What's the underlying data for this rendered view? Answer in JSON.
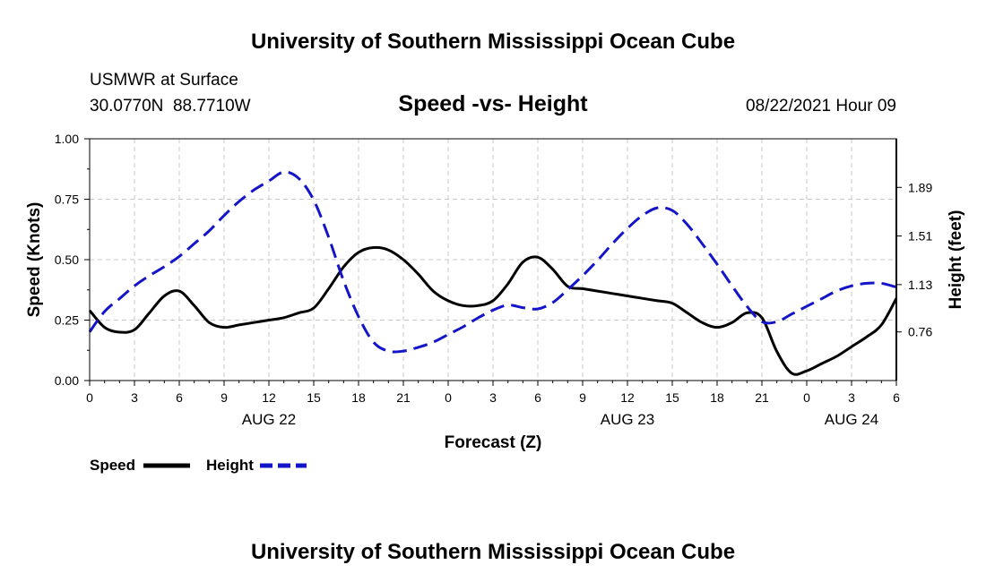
{
  "header": {
    "top_title": "University of Southern Mississippi Ocean Cube",
    "station": "USMWR at Surface",
    "coords": "30.0770N  88.7710W",
    "chart_title": "Speed -vs- Height",
    "date": "08/22/2021 Hour 09"
  },
  "footer": {
    "bottom_title": "University of Southern Mississippi Ocean Cube"
  },
  "colors": {
    "speed": "#000000",
    "height": "#1414c8",
    "grid": "#c8c8c8"
  },
  "chart_data": {
    "type": "line",
    "title": "Speed -vs- Height",
    "xlabel": "Forecast (Z)",
    "ylabel": "Speed (Knots)",
    "y2label": "Height (feet)",
    "xlim": [
      0,
      54
    ],
    "ylim": [
      0,
      1
    ],
    "y2lim": [
      0.38,
      2.27
    ],
    "x_tick_labels": [
      "0",
      "3",
      "6",
      "9",
      "12",
      "15",
      "18",
      "21",
      "0",
      "3",
      "6",
      "9",
      "12",
      "15",
      "18",
      "21",
      "0",
      "3",
      "6"
    ],
    "y_ticks": [
      {
        "value": 0,
        "label": "0.00"
      },
      {
        "value": 0.25,
        "label": "0.25"
      },
      {
        "value": 0.5,
        "label": "0.50"
      },
      {
        "value": 0.75,
        "label": "0.75"
      },
      {
        "value": 1,
        "label": "1.00"
      }
    ],
    "y2_ticks": [
      {
        "value": 0.76,
        "label": "0.76"
      },
      {
        "value": 1.13,
        "label": "1.13"
      },
      {
        "value": 1.51,
        "label": "1.51"
      },
      {
        "value": 1.89,
        "label": "1.89"
      }
    ],
    "date_labels": [
      {
        "x": 12,
        "label": "AUG 22"
      },
      {
        "x": 36,
        "label": "AUG 23"
      },
      {
        "x": 51,
        "label": "AUG 24"
      }
    ],
    "grid": true,
    "legend": [
      {
        "name": "Speed",
        "style": "solid"
      },
      {
        "name": "Height",
        "style": "dashed"
      }
    ],
    "series": [
      {
        "name": "Speed",
        "axis": "left",
        "x": [
          0,
          1,
          2,
          3,
          4,
          5,
          6,
          7,
          8,
          9,
          10,
          11,
          12,
          13,
          14,
          15,
          16,
          17,
          18,
          19,
          20,
          21,
          22,
          23,
          24,
          25,
          26,
          27,
          28,
          29,
          30,
          31,
          32,
          33,
          34,
          35,
          36,
          37,
          38,
          39,
          40,
          41,
          42,
          43,
          44,
          45,
          46,
          47,
          48,
          49,
          50,
          51,
          52,
          53,
          54
        ],
        "values": [
          0.29,
          0.22,
          0.2,
          0.21,
          0.28,
          0.35,
          0.37,
          0.31,
          0.24,
          0.22,
          0.23,
          0.24,
          0.25,
          0.26,
          0.28,
          0.3,
          0.38,
          0.47,
          0.53,
          0.55,
          0.54,
          0.5,
          0.44,
          0.37,
          0.33,
          0.31,
          0.31,
          0.33,
          0.4,
          0.49,
          0.51,
          0.46,
          0.39,
          0.38,
          0.37,
          0.36,
          0.35,
          0.34,
          0.33,
          0.32,
          0.28,
          0.24,
          0.22,
          0.24,
          0.28,
          0.26,
          0.12,
          0.03,
          0.04,
          0.07,
          0.1,
          0.14,
          0.18,
          0.23,
          0.34
        ]
      },
      {
        "name": "Height",
        "axis": "right",
        "x": [
          0,
          1,
          2,
          3,
          4,
          5,
          6,
          7,
          8,
          9,
          10,
          11,
          12,
          13,
          14,
          15,
          16,
          17,
          18,
          19,
          20,
          21,
          22,
          23,
          24,
          25,
          26,
          27,
          28,
          29,
          30,
          31,
          32,
          33,
          34,
          35,
          36,
          37,
          38,
          39,
          40,
          41,
          42,
          43,
          44,
          45,
          46,
          47,
          48,
          49,
          50,
          51,
          52,
          53,
          54
        ],
        "values": [
          0.76,
          0.92,
          1.02,
          1.12,
          1.2,
          1.27,
          1.35,
          1.45,
          1.55,
          1.67,
          1.78,
          1.87,
          1.94,
          2.01,
          1.96,
          1.79,
          1.5,
          1.16,
          0.88,
          0.68,
          0.61,
          0.61,
          0.64,
          0.68,
          0.74,
          0.8,
          0.87,
          0.93,
          0.97,
          0.95,
          0.94,
          0.99,
          1.09,
          1.2,
          1.32,
          1.45,
          1.57,
          1.67,
          1.73,
          1.71,
          1.6,
          1.45,
          1.29,
          1.12,
          0.96,
          0.84,
          0.84,
          0.9,
          0.96,
          1.02,
          1.08,
          1.12,
          1.14,
          1.14,
          1.11
        ]
      }
    ]
  }
}
